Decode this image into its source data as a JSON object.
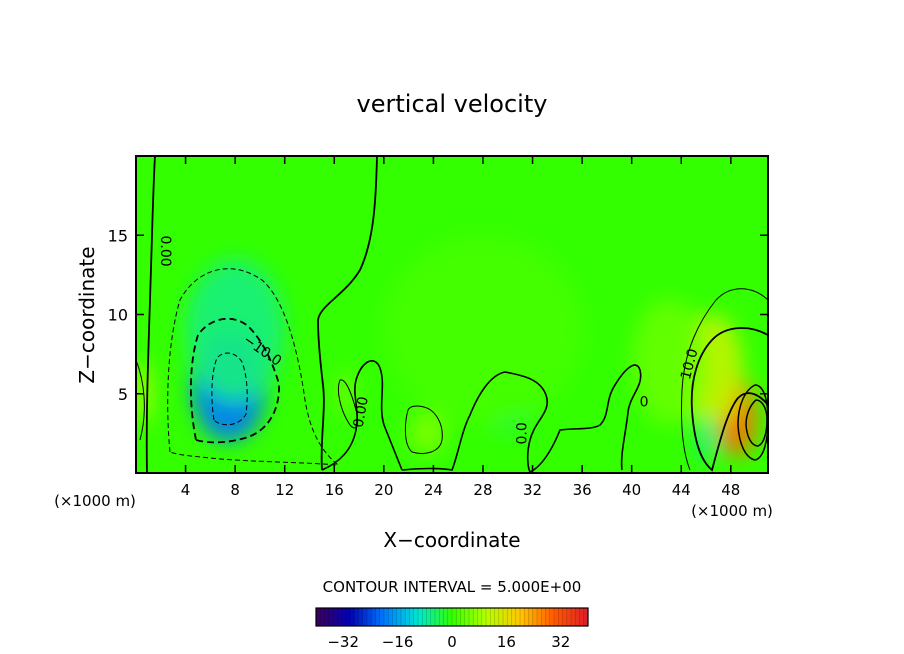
{
  "chart_data": {
    "type": "heatmap",
    "title": "vertical velocity",
    "xlabel": "X−coordinate",
    "ylabel": "Z−coordinate",
    "x_unit_left": "(×1000 m)",
    "x_unit_right": "(×1000 m)",
    "xlim": [
      0,
      51
    ],
    "ylim": [
      0,
      20
    ],
    "xticks": [
      4,
      8,
      12,
      16,
      20,
      24,
      28,
      32,
      36,
      40,
      44,
      48
    ],
    "xtick_labels": [
      "4",
      "8",
      "12",
      "16",
      "20",
      "24",
      "28",
      "32",
      "36",
      "40",
      "44",
      "48"
    ],
    "yticks": [
      5,
      10,
      15
    ],
    "ytick_labels": [
      "5",
      "10",
      "15"
    ],
    "contour_interval_text": "CONTOUR INTERVAL = 5.000E+00",
    "contour_labels": [
      {
        "text": "0.00",
        "x": 2.0,
        "y": 14.0,
        "rotate": 90
      },
      {
        "text": "−10.0",
        "x": 10.0,
        "y": 7.5,
        "rotate": 35
      },
      {
        "text": "0.00",
        "x": 18.5,
        "y": 3.8,
        "rotate": -80
      },
      {
        "text": "0.0",
        "x": 31.5,
        "y": 2.5,
        "rotate": -90
      },
      {
        "text": "0",
        "x": 41.0,
        "y": 4.2,
        "rotate": 0
      },
      {
        "text": "10.0",
        "x": 45.0,
        "y": 6.8,
        "rotate": -75
      }
    ],
    "field_blobs": [
      {
        "x": 7.5,
        "y": 5.5,
        "value": -20,
        "sx": 3.0,
        "sy": 3.5
      },
      {
        "x": 8.0,
        "y": 9.0,
        "value": -6,
        "sx": 4.0,
        "sy": 4.5
      },
      {
        "x": 48.5,
        "y": 3.5,
        "value": 28,
        "sx": 1.6,
        "sy": 2.5
      },
      {
        "x": 46.5,
        "y": 6.5,
        "value": 12,
        "sx": 2.5,
        "sy": 3.5
      },
      {
        "x": 46.0,
        "y": 2.0,
        "value": -9,
        "sx": 0.6,
        "sy": 1.3
      },
      {
        "x": 0.5,
        "y": 5.0,
        "value": 9,
        "sx": 0.8,
        "sy": 2.0
      },
      {
        "x": 23.5,
        "y": 2.5,
        "value": 6,
        "sx": 1.5,
        "sy": 1.3
      },
      {
        "x": 17.0,
        "y": 5.0,
        "value": 5,
        "sx": 0.7,
        "sy": 1.5
      },
      {
        "x": 43.0,
        "y": 7.0,
        "value": 4,
        "sx": 3.0,
        "sy": 4.0
      },
      {
        "x": 30.0,
        "y": 4.0,
        "value": -3,
        "sx": 2.0,
        "sy": 1.5
      },
      {
        "x": 28.0,
        "y": 9.0,
        "value": 1.5,
        "sx": 8.0,
        "sy": 6.0
      }
    ],
    "colorbar": {
      "min": -40,
      "max": 40,
      "ticks": [
        -32,
        -16,
        0,
        16,
        32
      ],
      "tick_labels": [
        "−32",
        "−16",
        "0",
        "16",
        "32"
      ]
    },
    "colors": {
      "background_field": "#33ff00",
      "axis": "#000000"
    }
  }
}
